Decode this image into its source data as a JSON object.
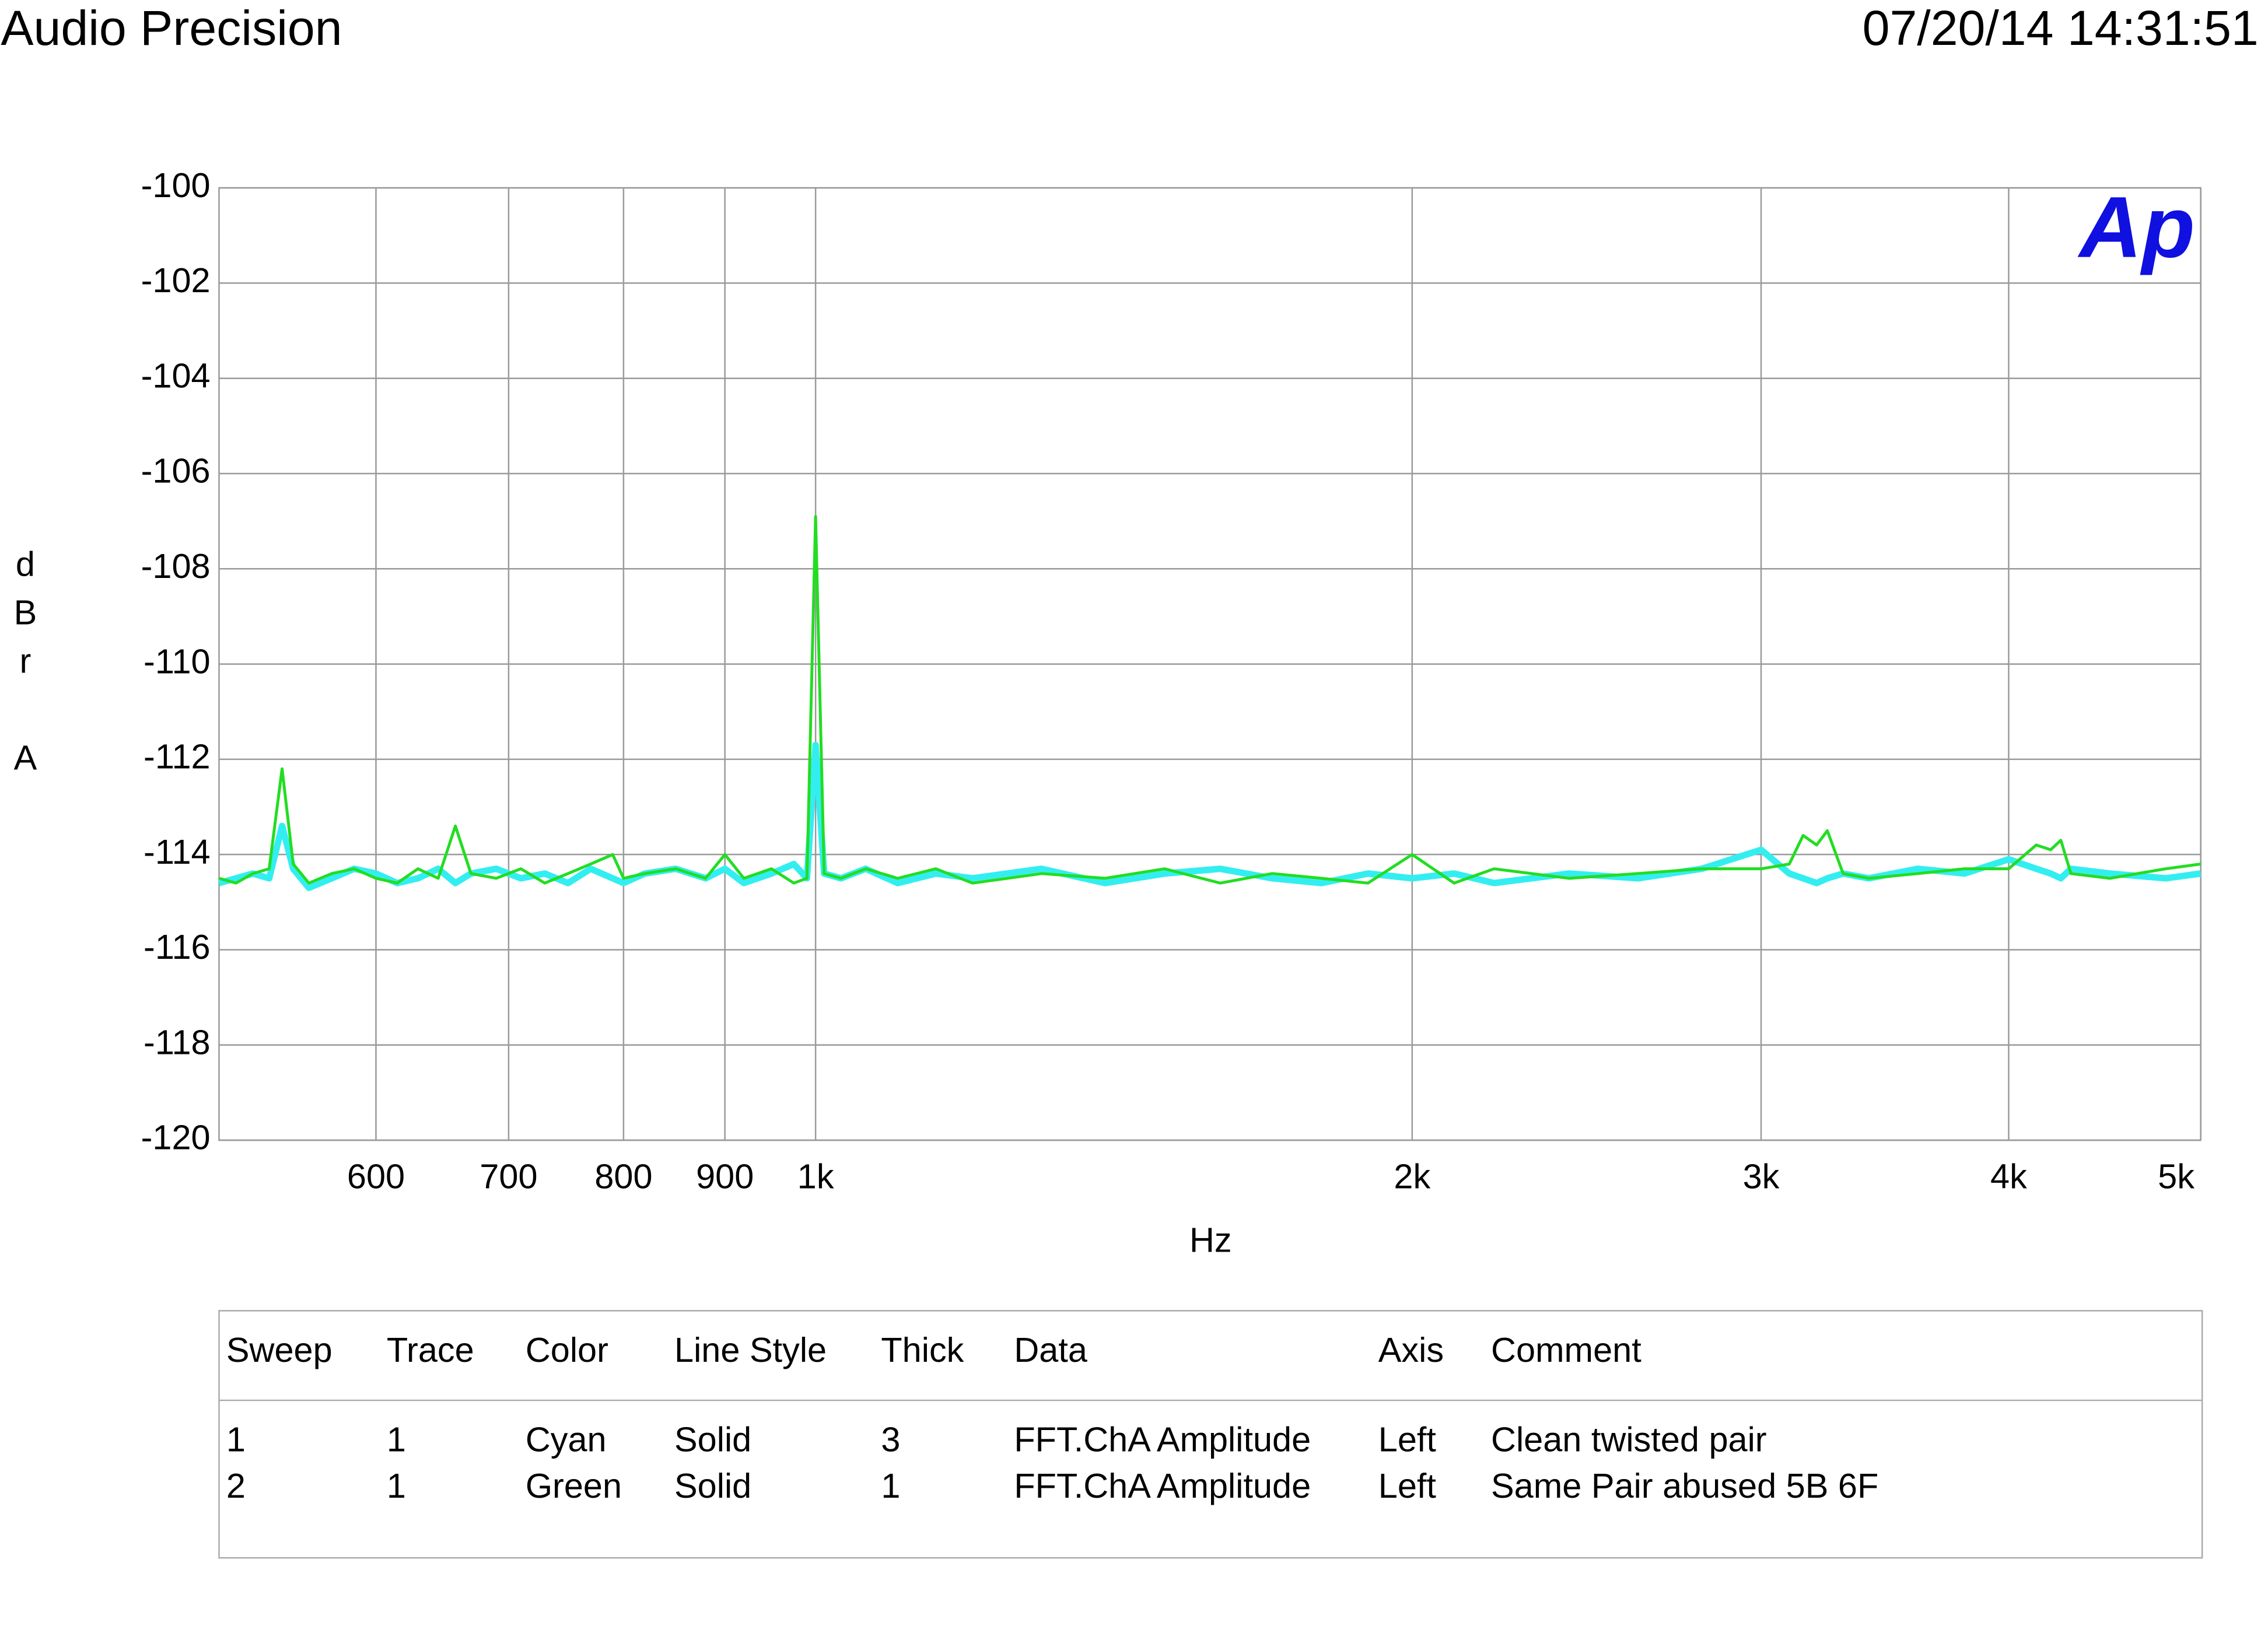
{
  "header": {
    "title": "Audio Precision",
    "timestamp": "07/20/14 14:31:51",
    "logo": "Ap"
  },
  "chart_data": {
    "type": "line",
    "log_x": true,
    "grid": true,
    "xlabel": "Hz",
    "ylabel": "dBr A",
    "xlim": [
      500,
      5000
    ],
    "ylim": [
      -120,
      -100
    ],
    "xticks": [
      600,
      700,
      800,
      900,
      {
        "value": 1000,
        "label": "1k"
      },
      {
        "value": 2000,
        "label": "2k"
      },
      {
        "value": 3000,
        "label": "3k"
      },
      {
        "value": 4000,
        "label": "4k"
      },
      {
        "value": 5000,
        "label": "5k"
      }
    ],
    "yticks": [
      -100,
      -102,
      -104,
      -106,
      -108,
      -110,
      -112,
      -114,
      -116,
      -118,
      -120
    ],
    "x": [
      500,
      510,
      520,
      530,
      538,
      545,
      555,
      570,
      585,
      600,
      615,
      630,
      645,
      658,
      670,
      690,
      710,
      730,
      750,
      770,
      790,
      800,
      820,
      850,
      880,
      900,
      920,
      950,
      975,
      990,
      1000,
      1010,
      1030,
      1060,
      1100,
      1150,
      1200,
      1300,
      1400,
      1500,
      1600,
      1700,
      1800,
      1900,
      2000,
      2100,
      2200,
      2400,
      2600,
      2800,
      3000,
      3100,
      3150,
      3200,
      3240,
      3300,
      3400,
      3600,
      3800,
      4000,
      4130,
      4200,
      4250,
      4300,
      4500,
      4800,
      5000
    ],
    "series": [
      {
        "color": "#33eef0",
        "values": [
          -114.6,
          -114.5,
          -114.4,
          -114.5,
          -113.4,
          -114.3,
          -114.7,
          -114.5,
          -114.3,
          -114.4,
          -114.6,
          -114.5,
          -114.3,
          -114.6,
          -114.4,
          -114.3,
          -114.5,
          -114.4,
          -114.6,
          -114.3,
          -114.5,
          -114.6,
          -114.4,
          -114.3,
          -114.5,
          -114.3,
          -114.6,
          -114.4,
          -114.2,
          -114.5,
          -111.7,
          -114.4,
          -114.5,
          -114.3,
          -114.6,
          -114.4,
          -114.5,
          -114.3,
          -114.6,
          -114.4,
          -114.3,
          -114.5,
          -114.6,
          -114.4,
          -114.5,
          -114.4,
          -114.6,
          -114.4,
          -114.5,
          -114.3,
          -113.9,
          -114.4,
          -114.5,
          -114.6,
          -114.5,
          -114.4,
          -114.5,
          -114.3,
          -114.4,
          -114.1,
          -114.3,
          -114.4,
          -114.5,
          -114.3,
          -114.4,
          -114.5,
          -114.4
        ]
      },
      {
        "color": "#22dd22",
        "values": [
          -114.5,
          -114.6,
          -114.4,
          -114.3,
          -112.2,
          -114.2,
          -114.6,
          -114.4,
          -114.3,
          -114.5,
          -114.6,
          -114.3,
          -114.5,
          -113.4,
          -114.4,
          -114.5,
          -114.3,
          -114.6,
          -114.4,
          -114.2,
          -114.0,
          -114.5,
          -114.4,
          -114.3,
          -114.5,
          -114.0,
          -114.5,
          -114.3,
          -114.6,
          -114.5,
          -106.9,
          -114.4,
          -114.5,
          -114.3,
          -114.5,
          -114.3,
          -114.6,
          -114.4,
          -114.5,
          -114.3,
          -114.6,
          -114.4,
          -114.5,
          -114.6,
          -114.0,
          -114.6,
          -114.3,
          -114.5,
          -114.4,
          -114.3,
          -114.3,
          -114.2,
          -113.6,
          -113.8,
          -113.5,
          -114.4,
          -114.5,
          -114.4,
          -114.3,
          -114.3,
          -113.8,
          -113.9,
          -113.7,
          -114.4,
          -114.5,
          -114.3,
          -114.2
        ]
      }
    ]
  },
  "legend_table": {
    "columns": [
      "Sweep",
      "Trace",
      "Color",
      "Line Style",
      "Thick",
      "Data",
      "Axis",
      "Comment"
    ],
    "rows": [
      [
        "1",
        "1",
        "Cyan",
        "Solid",
        "3",
        "FFT.ChA Amplitude",
        "Left",
        "Clean twisted pair"
      ],
      [
        "2",
        "1",
        "Green",
        "Solid",
        "1",
        "FFT.ChA Amplitude",
        "Left",
        "Same Pair abused 5B 6F"
      ]
    ]
  }
}
